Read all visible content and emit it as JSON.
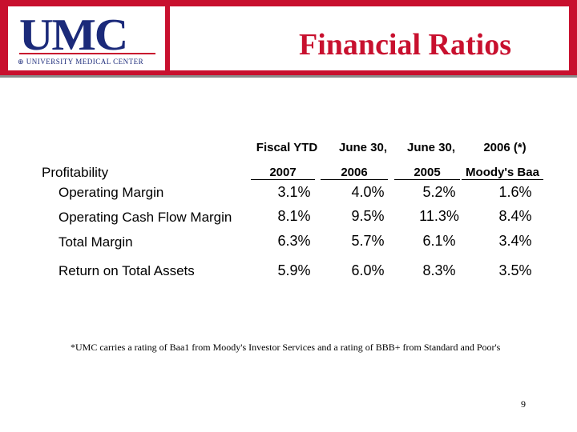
{
  "header": {
    "logo_text": "UMC",
    "logo_subtitle": "⊕ UNIVERSITY MEDICAL CENTER",
    "title": "Financial Ratios"
  },
  "table": {
    "col_headers_top": [
      "Fiscal YTD",
      "June 30,",
      "June 30,",
      "2006 (*)"
    ],
    "col_headers_bottom": [
      "2007",
      "2006",
      "2005",
      "Moody's Baa"
    ],
    "section": "Profitability",
    "rows": [
      {
        "label": "Operating Margin",
        "values": [
          "3.1%",
          "4.0%",
          "5.2%",
          "1.6%"
        ]
      },
      {
        "label": "Operating Cash Flow Margin",
        "values": [
          "8.1%",
          "9.5%",
          "11.3%",
          "8.4%"
        ]
      },
      {
        "label": "Total Margin",
        "values": [
          "6.3%",
          "5.7%",
          "6.1%",
          "3.4%"
        ]
      },
      {
        "label": "Return on Total Assets",
        "values": [
          "5.9%",
          "6.0%",
          "8.3%",
          "3.5%"
        ]
      }
    ]
  },
  "footnote": "*UMC carries a rating of Baa1 from Moody's Investor Services and a rating of BBB+ from Standard and Poor's",
  "page_number": "9",
  "colors": {
    "brand_red": "#c8102e",
    "brand_blue": "#1b2a7a"
  }
}
